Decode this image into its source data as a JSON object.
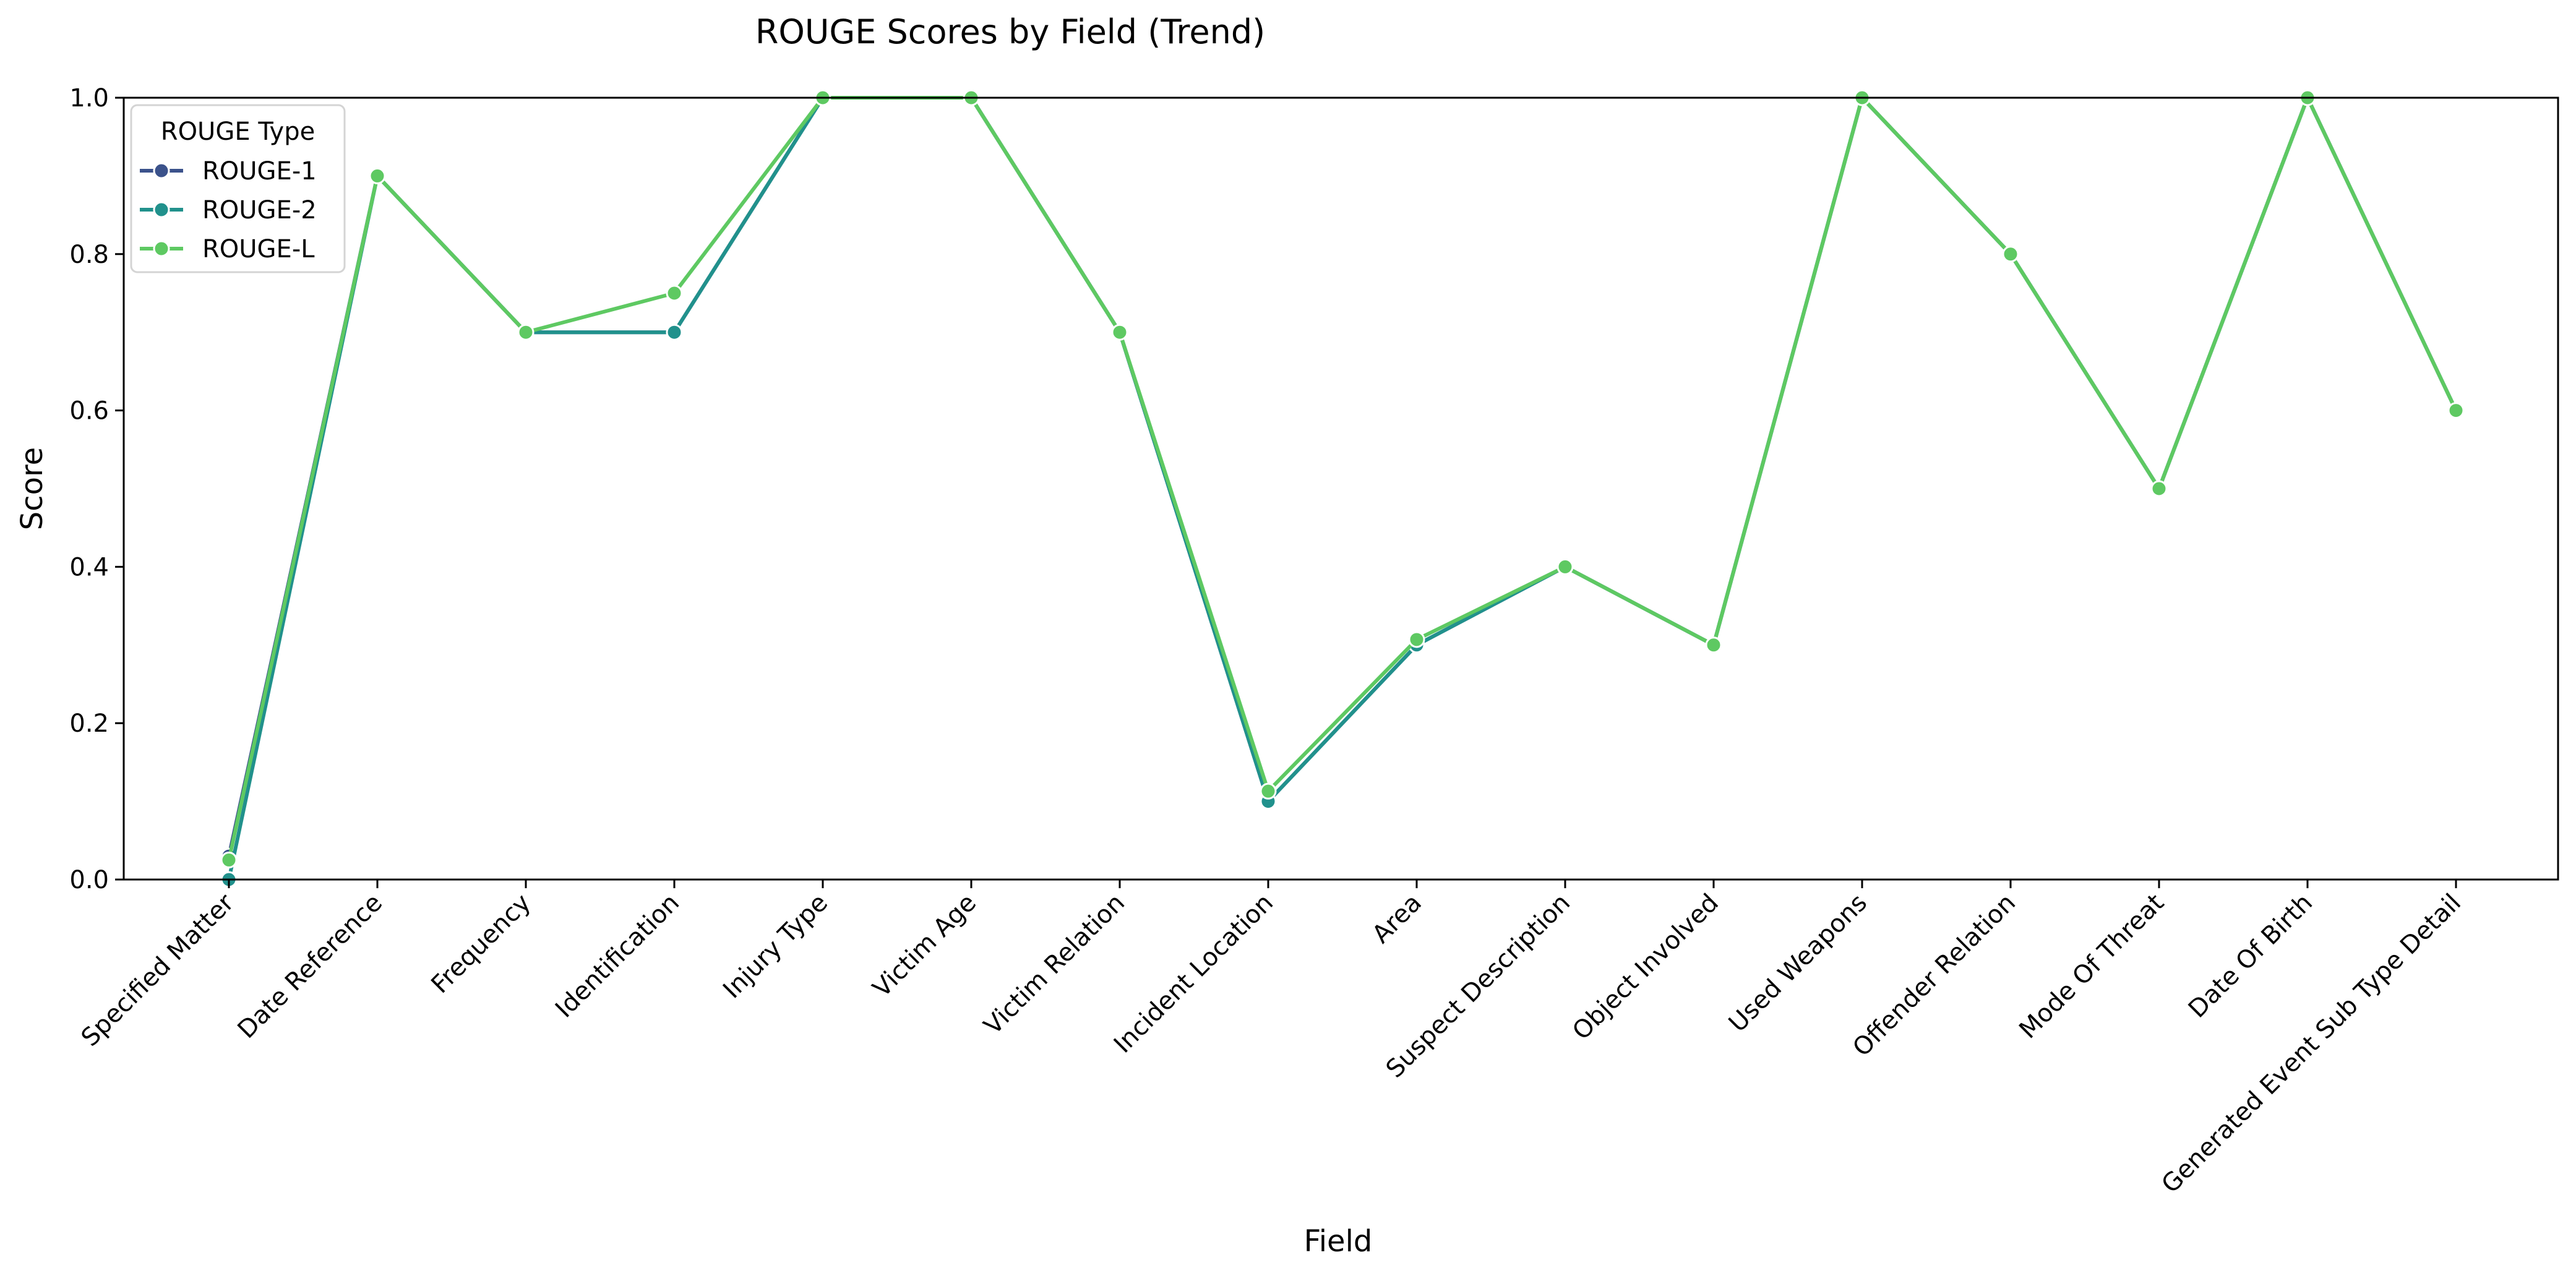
{
  "chart_data": {
    "type": "line",
    "title": "ROUGE Scores by Field (Trend)",
    "xlabel": "Field",
    "ylabel": "Score",
    "ylim": [
      0.0,
      1.0
    ],
    "yticks": [
      "0.0",
      "0.2",
      "0.4",
      "0.6",
      "0.8",
      "1.0"
    ],
    "grid": false,
    "legend": {
      "title": "ROUGE Type",
      "position": "top-left"
    },
    "categories": [
      "Specified Matter",
      "Date Reference",
      "Frequency",
      "Identification",
      "Injury Type",
      "Victim Age",
      "Victim Relation",
      "Incident Location",
      "Area",
      "Suspect Description",
      "Object Involved",
      "Used Weapons",
      "Offender Relation",
      "Mode Of Threat",
      "Date Of Birth",
      "Generated Event Sub Type Detail"
    ],
    "series": [
      {
        "name": "ROUGE-1",
        "color": "#3b528b",
        "values": [
          0.03,
          0.9,
          0.7,
          0.7,
          1.0,
          1.0,
          0.7,
          0.1,
          0.3,
          0.4,
          0.3,
          1.0,
          0.8,
          0.5,
          1.0,
          0.6
        ]
      },
      {
        "name": "ROUGE-2",
        "color": "#21918c",
        "values": [
          0.0,
          0.9,
          0.7,
          0.7,
          1.0,
          1.0,
          0.7,
          0.1,
          0.3,
          0.4,
          0.3,
          1.0,
          0.8,
          0.5,
          1.0,
          0.6
        ]
      },
      {
        "name": "ROUGE-L",
        "color": "#5ec962",
        "values": [
          0.025,
          0.9,
          0.7,
          0.75,
          1.0,
          1.0,
          0.7,
          0.113,
          0.307,
          0.4,
          0.3,
          1.0,
          0.8,
          0.5,
          1.0,
          0.6
        ]
      }
    ]
  }
}
